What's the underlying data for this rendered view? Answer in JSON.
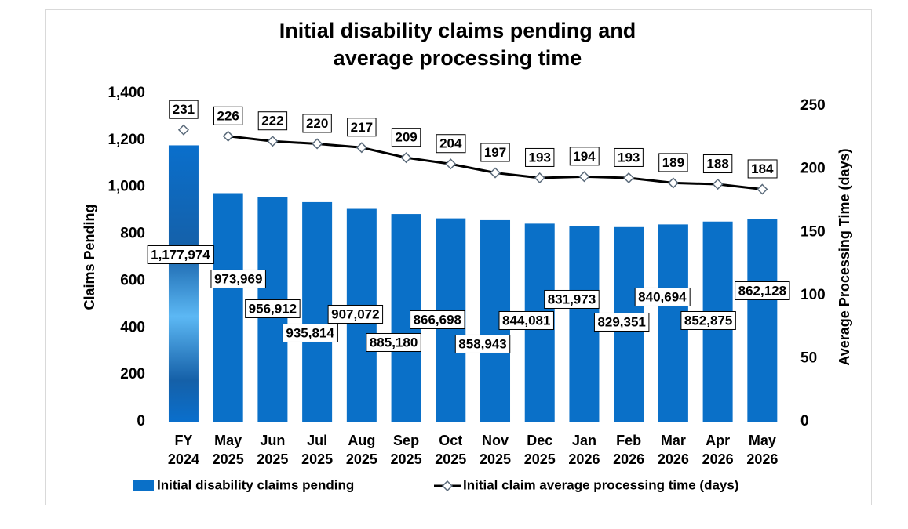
{
  "chart_data": {
    "type": "bar_line",
    "title": "Initial disability claims pending and",
    "subtitle": "average processing time",
    "categories": [
      "FY 2024",
      "May 2025",
      "Jun 2025",
      "Jul 2025",
      "Aug 2025",
      "Sep 2025",
      "Oct 2025",
      "Nov 2025",
      "Dec 2025",
      "Jan 2026",
      "Feb 2026",
      "Mar 2026",
      "Apr 2026",
      "May 2026"
    ],
    "series": [
      {
        "name": "Initial disability claims pending",
        "type": "bar",
        "color": "#0a70c8",
        "highlight_color": "#5cb8f4",
        "values": [
          1177.974,
          973.969,
          956.912,
          935.814,
          907.072,
          885.18,
          866.698,
          858.943,
          844.081,
          831.973,
          829.351,
          840.694,
          852.875,
          862.128
        ],
        "value_labels": [
          "1,177,974",
          "973,969",
          "956,912",
          "935,814",
          "907,072",
          "885,180",
          "866,698",
          "858,943",
          "844,081",
          "831,973",
          "829,351",
          "840,694",
          "852,875",
          "862,128"
        ]
      },
      {
        "name": "Initial claim average processing time (days)",
        "type": "line",
        "axis": "y2",
        "color": "#000000",
        "values": [
          231,
          226,
          222,
          220,
          217,
          209,
          204,
          197,
          193,
          194,
          193,
          189,
          188,
          184
        ]
      }
    ],
    "ylabel": "Claims Pending",
    "y2label": "Average Processing Time (days)",
    "ylim": [
      0,
      1400
    ],
    "yticks": [
      0,
      200,
      400,
      600,
      800,
      {
        "value": 1000,
        "label": "1,000"
      },
      {
        "value": 1200,
        "label": "1,200"
      },
      {
        "value": 1400,
        "label": "1,400"
      }
    ],
    "y2lim": [
      0,
      260
    ],
    "y2ticks": [
      0,
      50,
      100,
      150,
      200,
      250
    ],
    "grid": false
  }
}
